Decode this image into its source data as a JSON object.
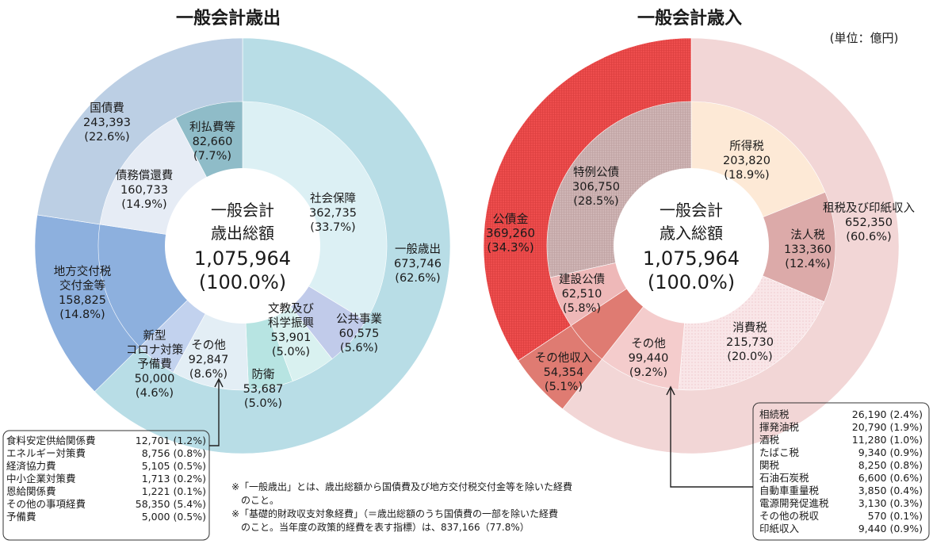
{
  "unit": "(単位：億円)",
  "chart_data": [
    {
      "type": "pie",
      "title": "一般会計歳出",
      "center": [
        "一般会計",
        "歳出総額",
        "1,075,964",
        "(100.0%)"
      ],
      "outer": [
        {
          "name": "一般歳出",
          "value": 673746,
          "pct": "(62.6%)",
          "color": "#b8dde6"
        },
        {
          "name": "地方交付税交付金等",
          "value": 158825,
          "pct": "(14.8%)",
          "color": "#8db0de"
        },
        {
          "name": "国債費",
          "value": 243393,
          "pct": "(22.6%)",
          "color": "#bccfe4"
        }
      ],
      "inner": [
        {
          "name": "社会保障",
          "value": 362735,
          "pct": "(33.7%)",
          "color": "#dcf0f4"
        },
        {
          "name": "公共事業",
          "value": 60575,
          "pct": "(5.6%)",
          "color": "#c1cbea"
        },
        {
          "name": "文教及び科学振興",
          "value": 53901,
          "pct": "(5.0%)",
          "color": "#d9f1f0"
        },
        {
          "name": "防衛",
          "value": 53687,
          "pct": "(5.0%)",
          "color": "#b7e4e2"
        },
        {
          "name": "その他",
          "value": 92847,
          "pct": "(8.6%)",
          "color": "#e3eef5"
        },
        {
          "name": "新型コロナ対策予備費",
          "value": 50000,
          "pct": "(4.6%)",
          "color": "#c2d2ee"
        },
        {
          "name": "地方交付税交付金等",
          "value": 158825,
          "pct": "(14.8%)",
          "color": "#8db0de"
        },
        {
          "name": "債務償還費",
          "value": 160733,
          "pct": "(14.9%)",
          "color": "#e6ecf5"
        },
        {
          "name": "利払費等",
          "value": 82660,
          "pct": "(7.7%)",
          "color": "#8fbcc8"
        }
      ]
    },
    {
      "type": "pie",
      "title": "一般会計歳入",
      "center": [
        "一般会計",
        "歳入総額",
        "1,075,964",
        "(100.0%)"
      ],
      "outer": [
        {
          "name": "租税及び印紙収入",
          "value": 652350,
          "pct": "(60.6%)",
          "color": "#f2d6d6"
        },
        {
          "name": "その他収入",
          "value": 54354,
          "pct": "(5.1%)",
          "color": "#df7b72"
        },
        {
          "name": "公債金",
          "value": 369260,
          "pct": "(34.3%)",
          "color": "#ee4d4d"
        }
      ],
      "inner": [
        {
          "name": "所得税",
          "value": 203820,
          "pct": "(18.9%)",
          "color": "#fde9d6"
        },
        {
          "name": "法人税",
          "value": 133360,
          "pct": "(12.4%)",
          "color": "#dcaaa9"
        },
        {
          "name": "消費税",
          "value": 215730,
          "pct": "(20.0%)",
          "color": "#f7e1e3"
        },
        {
          "name": "その他",
          "value": 99440,
          "pct": "(9.2%)",
          "color": "#f4cccc"
        },
        {
          "name": "その他収入",
          "value": 54354,
          "pct": "(5.1%)",
          "color": "#df7b72"
        },
        {
          "name": "建設公債",
          "value": 62510,
          "pct": "(5.8%)",
          "color": "#eeb8b8"
        },
        {
          "name": "特例公債",
          "value": 306750,
          "pct": "(28.5%)",
          "color": "#ccb0b0"
        }
      ]
    }
  ],
  "labels": {
    "koku": [
      "国債費",
      "243,393",
      "(22.6%)"
    ],
    "rihara": [
      "利払費等",
      "82,660",
      "(7.7%)"
    ],
    "saimu": [
      "債務償還費",
      "160,733",
      "(14.9%)"
    ],
    "shakai": [
      "社会保障",
      "362,735",
      "(33.7%)"
    ],
    "ippan": [
      "一般歳出",
      "673,746",
      "(62.6%)"
    ],
    "chiho": [
      "地方交付税",
      "交付金等",
      "158,825",
      "(14.8%)"
    ],
    "corona": [
      "新型",
      "コロナ対策",
      "予備費",
      "50,000",
      "(4.6%)"
    ],
    "sonota_out": [
      "その他",
      "92,847",
      "(8.6%)"
    ],
    "bunkyo": [
      "文教及び",
      "科学振興",
      "53,901",
      "(5.0%)"
    ],
    "kokyo": [
      "公共事業",
      "60,575",
      "(5.6%)"
    ],
    "boei": [
      "防衛",
      "53,687",
      "(5.0%)"
    ],
    "shotoku": [
      "所得税",
      "203,820",
      "(18.9%)"
    ],
    "tokurei": [
      "特例公債",
      "306,750",
      "(28.5%)"
    ],
    "kosai": [
      "公債金",
      "369,260",
      "(34.3%)"
    ],
    "sozei": [
      "租税及び印紙収入",
      "652,350",
      "(60.6%)"
    ],
    "hojin": [
      "法人税",
      "133,360",
      "(12.4%)"
    ],
    "kensetsu": [
      "建設公債",
      "62,510",
      "(5.8%)"
    ],
    "shohi": [
      "消費税",
      "215,730",
      "(20.0%)"
    ],
    "sonota_in": [
      "その他",
      "99,440",
      "(9.2%)"
    ],
    "sonotashu": [
      "その他収入",
      "54,354",
      "(5.1%)"
    ]
  },
  "left_breakdown": [
    [
      "食料安定供給関係費",
      "12,701 (1.2%)"
    ],
    [
      "エネルギー対策費",
      "8,756 (0.8%)"
    ],
    [
      "経済協力費",
      "5,105 (0.5%)"
    ],
    [
      "中小企業対策費",
      "1,713 (0.2%)"
    ],
    [
      "恩給関係費",
      "1,221 (0.1%)"
    ],
    [
      "その他の事項経費",
      "58,350 (5.4%)"
    ],
    [
      "予備費",
      "5,000 (0.5%)"
    ]
  ],
  "right_breakdown": [
    [
      "相続税",
      "26,190 (2.4%)"
    ],
    [
      "揮発油税",
      "20,790 (1.9%)"
    ],
    [
      "酒税",
      "11,280 (1.0%)"
    ],
    [
      "たばこ税",
      "9,340 (0.9%)"
    ],
    [
      "関税",
      "8,250 (0.8%)"
    ],
    [
      "石油石炭税",
      "6,600 (0.6%)"
    ],
    [
      "自動車重量税",
      "3,850 (0.4%)"
    ],
    [
      "電源開発促進税",
      "3,130 (0.3%)"
    ],
    [
      "その他の税収",
      "570 (0.1%)"
    ],
    [
      "印紙収入",
      "9,440 (0.9%)"
    ]
  ],
  "notes": [
    "※「一般歳出」とは、歳出総額から国債費及び地方交付税交付金等を除いた経費",
    "　のこと。",
    "※「基礎的財政収支対象経費」（＝歳出総額のうち国債費の一部を除いた経費",
    "　のこと。当年度の政策的経費を表す指標）は、837,166（77.8%）"
  ]
}
